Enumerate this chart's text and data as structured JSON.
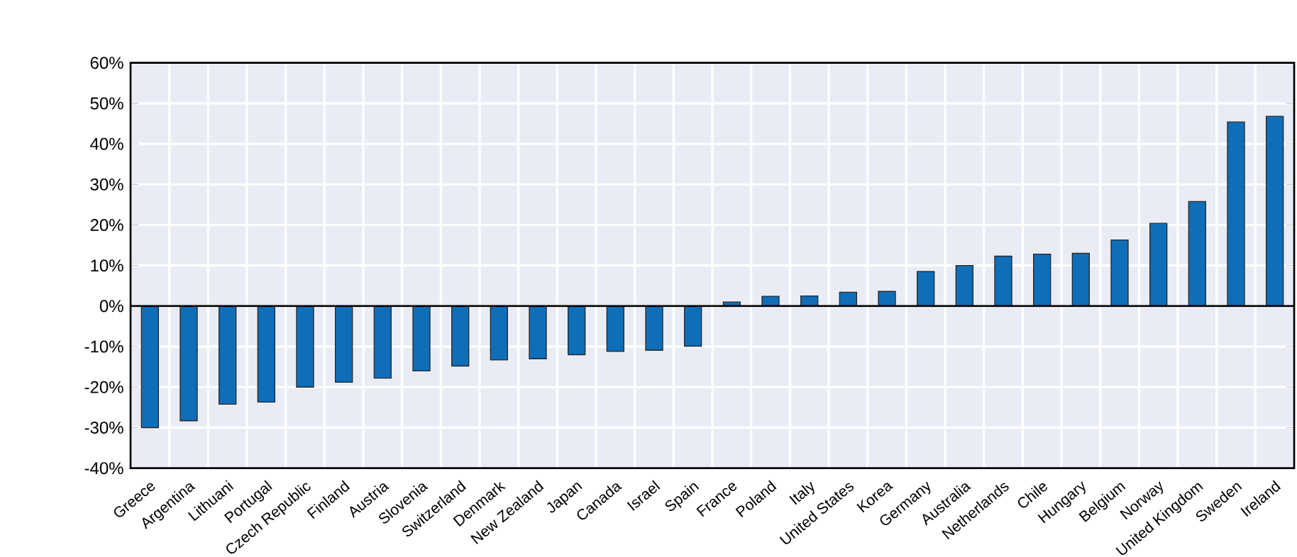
{
  "chart_data": {
    "type": "bar",
    "categories": [
      "Greece",
      "Argentina",
      "Lithuani",
      "Portugal",
      "Czech Republic",
      "Finland",
      "Austria",
      "Slovenia",
      "Switzerland",
      "Denmark",
      "New Zealand",
      "Japan",
      "Canada",
      "Israel",
      "Spain",
      "France",
      "Poland",
      "Italy",
      "United States",
      "Korea",
      "Germany",
      "Australia",
      "Netherlands",
      "Chile",
      "Hungary",
      "Belgium",
      "Norway",
      "United Kingdom",
      "Sweden",
      "Ireland"
    ],
    "values": [
      -30,
      -28.3,
      -24.2,
      -23.7,
      -20,
      -18.8,
      -17.8,
      -16,
      -14.8,
      -13.3,
      -13,
      -12,
      -11.2,
      -10.9,
      -9.9,
      1,
      2.4,
      2.5,
      3.4,
      3.6,
      8.5,
      10,
      12.3,
      12.8,
      13,
      16.3,
      20.4,
      25.8,
      45.4,
      46.8
    ],
    "color": "#0f6eb8",
    "ylim": [
      -40,
      60
    ],
    "yticks": [
      {
        "value": -40,
        "label": "-40%"
      },
      {
        "value": -30,
        "label": "-30%"
      },
      {
        "value": -20,
        "label": "-20%"
      },
      {
        "value": -10,
        "label": "-10%"
      },
      {
        "value": 0,
        "label": "0%"
      },
      {
        "value": 10,
        "label": "10%"
      },
      {
        "value": 20,
        "label": "20%"
      },
      {
        "value": 30,
        "label": "30%"
      },
      {
        "value": 40,
        "label": "40%"
      },
      {
        "value": 50,
        "label": "50%"
      },
      {
        "value": 60,
        "label": "60%"
      }
    ],
    "grid": true
  }
}
